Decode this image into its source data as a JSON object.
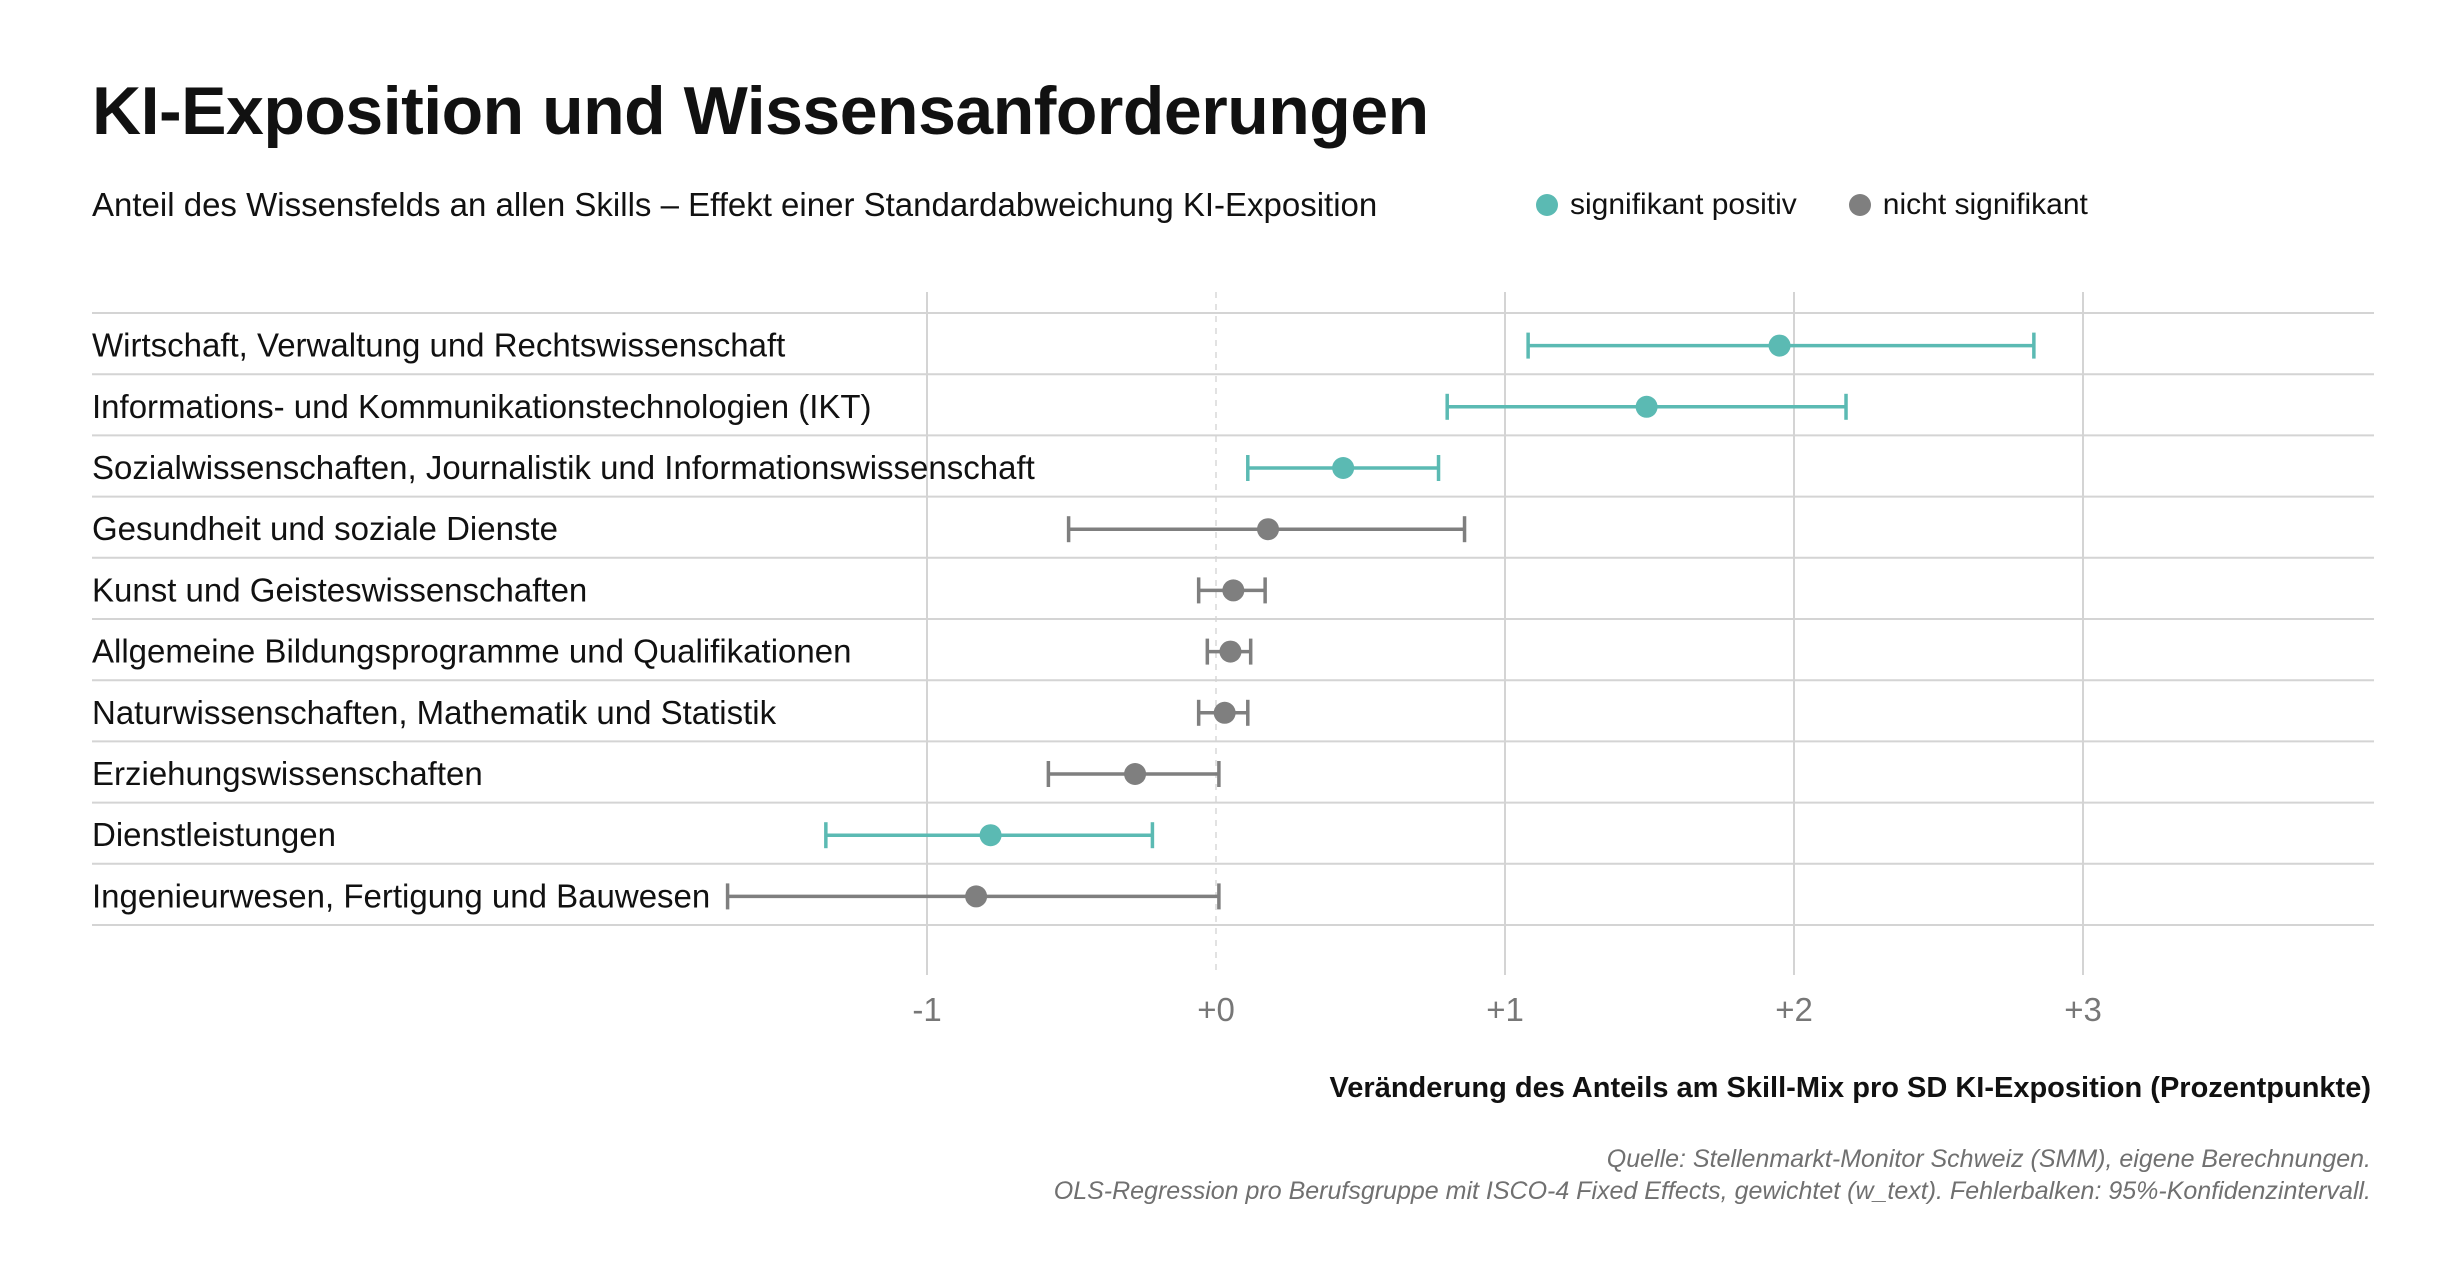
{
  "chart_data": {
    "type": "dot-errorbar",
    "title": "KI-Exposition und Wissensanforderungen",
    "subtitle": "Anteil des Wissensfelds an allen Skills – Effekt einer Standardabweichung KI-Exposition",
    "xlabel": "Veränderung des Anteils am Skill-Mix pro SD KI-Exposition (Prozentpunkte)",
    "xlim": [
      -1,
      3
    ],
    "xticks": [
      -1,
      0,
      1,
      2,
      3
    ],
    "xtick_labels": [
      "-1",
      "+0",
      "+1",
      "+2",
      "+3"
    ],
    "legend": [
      {
        "label": "signifikant positiv",
        "color": "#5bbab3"
      },
      {
        "label": "nicht signifikant",
        "color": "#7f7f7f"
      }
    ],
    "colors": {
      "significant": "#5bbab3",
      "not_significant": "#7f7f7f"
    },
    "rows": [
      {
        "label": "Wirtschaft, Verwaltung und Rechtswissenschaft",
        "estimate": 1.95,
        "ci_low": 1.08,
        "ci_high": 2.83,
        "significant": true
      },
      {
        "label": "Informations- und Kommunikationstechnologien (IKT)",
        "estimate": 1.49,
        "ci_low": 0.8,
        "ci_high": 2.18,
        "significant": true
      },
      {
        "label": "Sozialwissenschaften, Journalistik und Informationswissenschaft",
        "estimate": 0.44,
        "ci_low": 0.11,
        "ci_high": 0.77,
        "significant": true
      },
      {
        "label": "Gesundheit und soziale Dienste",
        "estimate": 0.18,
        "ci_low": -0.51,
        "ci_high": 0.86,
        "significant": false
      },
      {
        "label": "Kunst und Geisteswissenschaften",
        "estimate": 0.06,
        "ci_low": -0.06,
        "ci_high": 0.17,
        "significant": false
      },
      {
        "label": "Allgemeine Bildungsprogramme und Qualifikationen",
        "estimate": 0.05,
        "ci_low": -0.03,
        "ci_high": 0.12,
        "significant": false
      },
      {
        "label": "Naturwissenschaften, Mathematik und Statistik",
        "estimate": 0.03,
        "ci_low": -0.06,
        "ci_high": 0.11,
        "significant": false
      },
      {
        "label": "Erziehungswissenschaften",
        "estimate": -0.28,
        "ci_low": -0.58,
        "ci_high": 0.01,
        "significant": false
      },
      {
        "label": "Dienstleistungen",
        "estimate": -0.78,
        "ci_low": -1.35,
        "ci_high": -0.22,
        "significant": true
      },
      {
        "label": "Ingenieurwesen, Fertigung und Bauwesen",
        "estimate": -0.83,
        "ci_low": -1.69,
        "ci_high": 0.01,
        "significant": false
      }
    ],
    "source_notes": [
      "Quelle: Stellenmarkt-Monitor Schweiz (SMM), eigene Berechnungen.",
      "OLS-Regression pro Berufsgruppe mit ISCO-4 Fixed Effects, gewichtet (w_text). Fehlerbalken: 95%-Konfidenzintervall."
    ]
  }
}
